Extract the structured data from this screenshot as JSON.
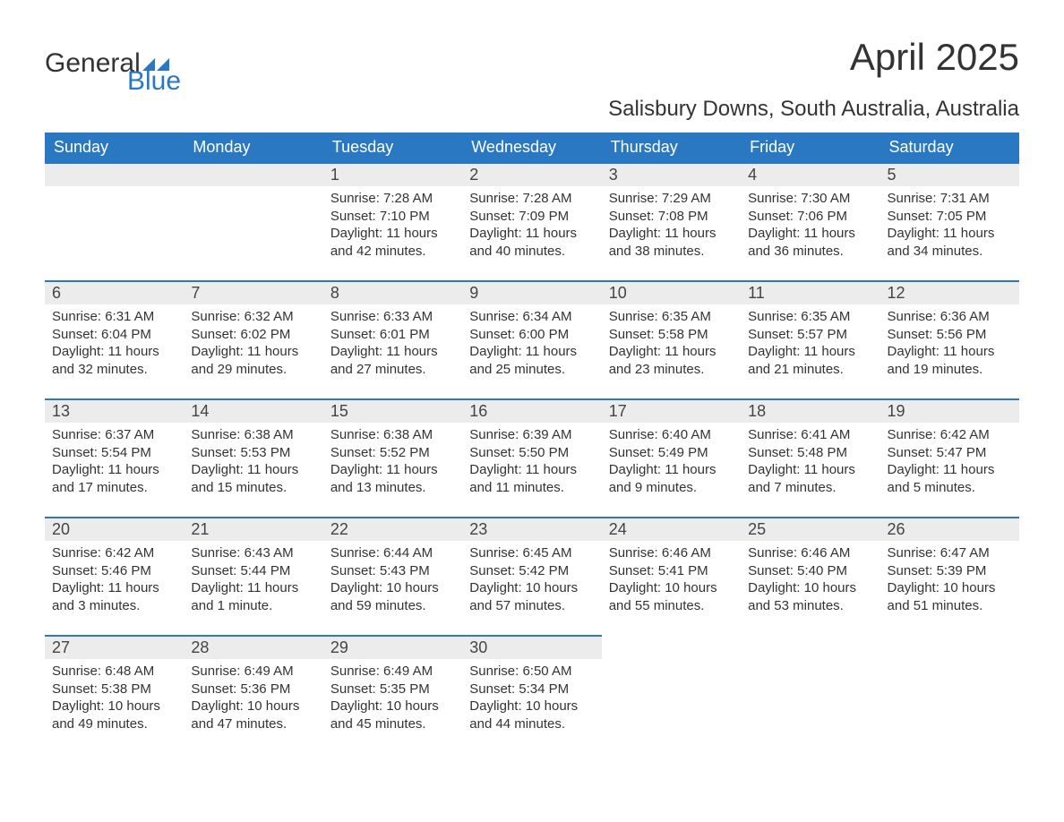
{
  "logo": {
    "part1": "General",
    "part2": "Blue"
  },
  "title": "April 2025",
  "subtitle": "Salisbury Downs, South Australia, Australia",
  "colors": {
    "header_bg": "#2b78c2",
    "daynum_bg": "#ececec",
    "accent_border": "#2b78c2",
    "text": "#333333",
    "background": "#ffffff"
  },
  "typography": {
    "title_fontsize": 42,
    "subtitle_fontsize": 24,
    "header_fontsize": 18,
    "cell_fontsize": 15
  },
  "weekdays": [
    "Sunday",
    "Monday",
    "Tuesday",
    "Wednesday",
    "Thursday",
    "Friday",
    "Saturday"
  ],
  "weeks": [
    [
      null,
      null,
      {
        "n": "1",
        "sunrise": "7:28 AM",
        "sunset": "7:10 PM",
        "daylight": "11 hours and 42 minutes."
      },
      {
        "n": "2",
        "sunrise": "7:28 AM",
        "sunset": "7:09 PM",
        "daylight": "11 hours and 40 minutes."
      },
      {
        "n": "3",
        "sunrise": "7:29 AM",
        "sunset": "7:08 PM",
        "daylight": "11 hours and 38 minutes."
      },
      {
        "n": "4",
        "sunrise": "7:30 AM",
        "sunset": "7:06 PM",
        "daylight": "11 hours and 36 minutes."
      },
      {
        "n": "5",
        "sunrise": "7:31 AM",
        "sunset": "7:05 PM",
        "daylight": "11 hours and 34 minutes."
      }
    ],
    [
      {
        "n": "6",
        "sunrise": "6:31 AM",
        "sunset": "6:04 PM",
        "daylight": "11 hours and 32 minutes."
      },
      {
        "n": "7",
        "sunrise": "6:32 AM",
        "sunset": "6:02 PM",
        "daylight": "11 hours and 29 minutes."
      },
      {
        "n": "8",
        "sunrise": "6:33 AM",
        "sunset": "6:01 PM",
        "daylight": "11 hours and 27 minutes."
      },
      {
        "n": "9",
        "sunrise": "6:34 AM",
        "sunset": "6:00 PM",
        "daylight": "11 hours and 25 minutes."
      },
      {
        "n": "10",
        "sunrise": "6:35 AM",
        "sunset": "5:58 PM",
        "daylight": "11 hours and 23 minutes."
      },
      {
        "n": "11",
        "sunrise": "6:35 AM",
        "sunset": "5:57 PM",
        "daylight": "11 hours and 21 minutes."
      },
      {
        "n": "12",
        "sunrise": "6:36 AM",
        "sunset": "5:56 PM",
        "daylight": "11 hours and 19 minutes."
      }
    ],
    [
      {
        "n": "13",
        "sunrise": "6:37 AM",
        "sunset": "5:54 PM",
        "daylight": "11 hours and 17 minutes."
      },
      {
        "n": "14",
        "sunrise": "6:38 AM",
        "sunset": "5:53 PM",
        "daylight": "11 hours and 15 minutes."
      },
      {
        "n": "15",
        "sunrise": "6:38 AM",
        "sunset": "5:52 PM",
        "daylight": "11 hours and 13 minutes."
      },
      {
        "n": "16",
        "sunrise": "6:39 AM",
        "sunset": "5:50 PM",
        "daylight": "11 hours and 11 minutes."
      },
      {
        "n": "17",
        "sunrise": "6:40 AM",
        "sunset": "5:49 PM",
        "daylight": "11 hours and 9 minutes."
      },
      {
        "n": "18",
        "sunrise": "6:41 AM",
        "sunset": "5:48 PM",
        "daylight": "11 hours and 7 minutes."
      },
      {
        "n": "19",
        "sunrise": "6:42 AM",
        "sunset": "5:47 PM",
        "daylight": "11 hours and 5 minutes."
      }
    ],
    [
      {
        "n": "20",
        "sunrise": "6:42 AM",
        "sunset": "5:46 PM",
        "daylight": "11 hours and 3 minutes."
      },
      {
        "n": "21",
        "sunrise": "6:43 AM",
        "sunset": "5:44 PM",
        "daylight": "11 hours and 1 minute."
      },
      {
        "n": "22",
        "sunrise": "6:44 AM",
        "sunset": "5:43 PM",
        "daylight": "10 hours and 59 minutes."
      },
      {
        "n": "23",
        "sunrise": "6:45 AM",
        "sunset": "5:42 PM",
        "daylight": "10 hours and 57 minutes."
      },
      {
        "n": "24",
        "sunrise": "6:46 AM",
        "sunset": "5:41 PM",
        "daylight": "10 hours and 55 minutes."
      },
      {
        "n": "25",
        "sunrise": "6:46 AM",
        "sunset": "5:40 PM",
        "daylight": "10 hours and 53 minutes."
      },
      {
        "n": "26",
        "sunrise": "6:47 AM",
        "sunset": "5:39 PM",
        "daylight": "10 hours and 51 minutes."
      }
    ],
    [
      {
        "n": "27",
        "sunrise": "6:48 AM",
        "sunset": "5:38 PM",
        "daylight": "10 hours and 49 minutes."
      },
      {
        "n": "28",
        "sunrise": "6:49 AM",
        "sunset": "5:36 PM",
        "daylight": "10 hours and 47 minutes."
      },
      {
        "n": "29",
        "sunrise": "6:49 AM",
        "sunset": "5:35 PM",
        "daylight": "10 hours and 45 minutes."
      },
      {
        "n": "30",
        "sunrise": "6:50 AM",
        "sunset": "5:34 PM",
        "daylight": "10 hours and 44 minutes."
      },
      null,
      null,
      null
    ]
  ],
  "labels": {
    "sunrise": "Sunrise: ",
    "sunset": "Sunset: ",
    "daylight": "Daylight: "
  }
}
